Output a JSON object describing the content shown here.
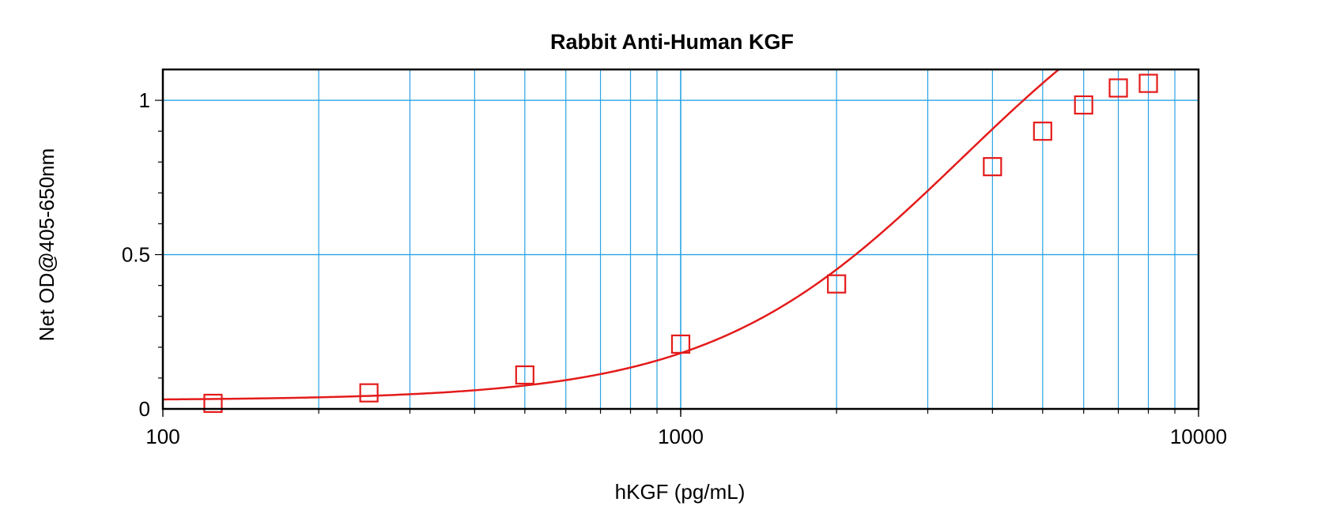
{
  "chart_data": {
    "type": "scatter",
    "title": "Rabbit Anti-Human KGF",
    "xlabel": "hKGF (pg/mL)",
    "ylabel": "Net OD@405-650nm",
    "x_scale": "log",
    "xlim": [
      100,
      10000
    ],
    "ylim": [
      0,
      1.1
    ],
    "x_ticks": [
      {
        "value": 100,
        "label": "100"
      },
      {
        "value": 1000,
        "label": "1000"
      },
      {
        "value": 10000,
        "label": "10000"
      }
    ],
    "y_ticks": [
      {
        "value": 0,
        "label": "0"
      },
      {
        "value": 0.5,
        "label": "0.5"
      },
      {
        "value": 1,
        "label": "1"
      }
    ],
    "grid": true,
    "colors": {
      "grid": "#29a3e3",
      "series": "#e41b1b",
      "axis": "#000000"
    },
    "series": [
      {
        "marker": "open-square",
        "x": [
          125,
          250,
          500,
          1000,
          2000,
          4000,
          5000,
          6000,
          7000,
          8000
        ],
        "y": [
          0.018,
          0.052,
          0.11,
          0.21,
          0.405,
          0.785,
          0.9,
          0.985,
          1.04,
          1.055
        ]
      }
    ],
    "fit_curve": {
      "type": "4PL",
      "A": 0.028,
      "D": 1.6,
      "C": 3500,
      "B": 1.78
    }
  }
}
